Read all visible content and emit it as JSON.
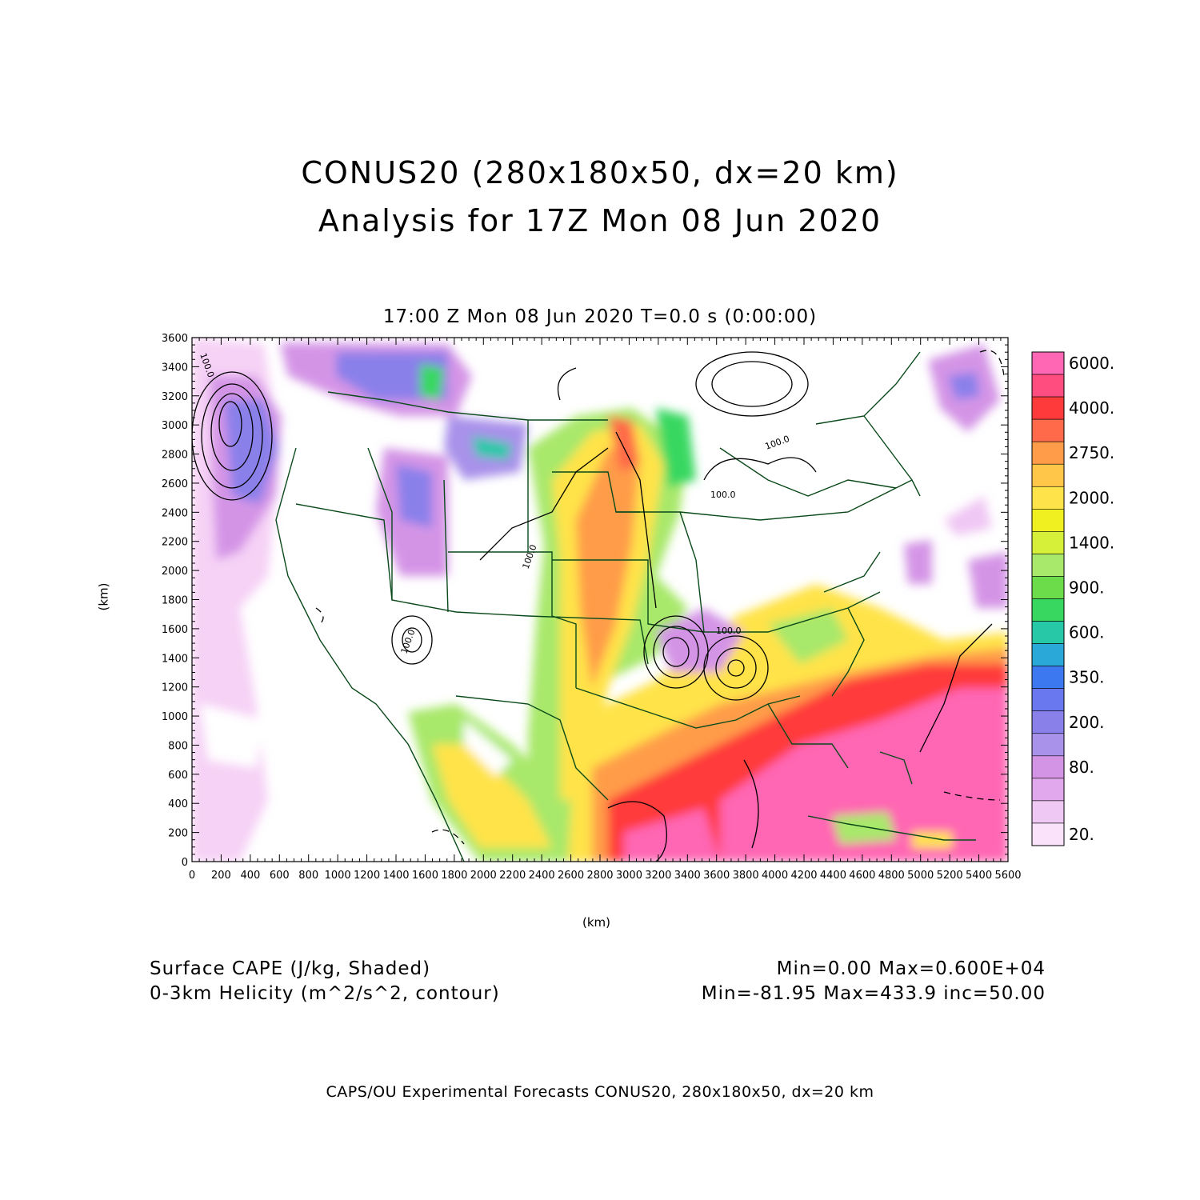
{
  "header": {
    "title_line1": "CONUS20 (280x180x50, dx=20 km)",
    "title_line2": "Analysis for 17Z Mon 08 Jun 2020",
    "subtitle": "17:00 Z Mon 08 Jun 2020    T=0.0 s (0:00:00)"
  },
  "chart_data": {
    "type": "heatmap",
    "xlabel": "(km)",
    "ylabel": "(km)",
    "xlim": [
      0,
      5600
    ],
    "ylim": [
      0,
      3600
    ],
    "x_ticks": [
      "0",
      "200",
      "400",
      "600",
      "800",
      "1000",
      "1200",
      "1400",
      "1600",
      "1800",
      "2000",
      "2200",
      "2400",
      "2600",
      "2800",
      "3000",
      "3200",
      "3400",
      "3600",
      "3800",
      "4000",
      "4200",
      "4400",
      "4600",
      "4800",
      "5000",
      "5200",
      "5400",
      "5600"
    ],
    "y_ticks": [
      "0",
      "200",
      "400",
      "600",
      "800",
      "1000",
      "1200",
      "1400",
      "1600",
      "1800",
      "2000",
      "2200",
      "2400",
      "2600",
      "2800",
      "3000",
      "3200",
      "3400",
      "3600"
    ],
    "shaded_field": "Surface CAPE (J/kg, Shaded)",
    "contour_field": "0-3km Helicity (m^2/s^2, contour)",
    "shaded_range": "Min=0.00 Max=0.600E+04",
    "contour_range": "Min=-81.95 Max=433.9 inc=50.00",
    "contour_labels": [
      "100.0",
      "100.0",
      "100.0",
      "100.0",
      "100.0",
      "100.0"
    ],
    "colorbar": {
      "labels": [
        "6000.",
        "4000.",
        "2750.",
        "2000.",
        "1400.",
        "900.",
        "600.",
        "350.",
        "200.",
        "80.",
        "20."
      ],
      "colors": [
        "#ff66b3",
        "#ff4d80",
        "#ff3a3a",
        "#ff6a4a",
        "#ff9c4a",
        "#ffc64a",
        "#ffe34a",
        "#f0f020",
        "#d6f03a",
        "#a8e86a",
        "#6cdc4a",
        "#38d860",
        "#26c8a8",
        "#2aa8d8",
        "#3c78f0",
        "#6a78f0",
        "#8a80ea",
        "#a892ea",
        "#d494e6",
        "#e2a8ee",
        "#f0c8f4",
        "#fbe2fb"
      ],
      "label_color_index": [
        0,
        2,
        4,
        6,
        8,
        10,
        12,
        14,
        16,
        18,
        21
      ]
    }
  },
  "footer": {
    "left_line1": "Surface CAPE (J/kg, Shaded)",
    "left_line2": "0-3km Helicity (m^2/s^2, contour)",
    "right_line1": "Min=0.00 Max=0.600E+04",
    "right_line2": "Min=-81.95 Max=433.9 inc=50.00",
    "credit": "CAPS/OU Experimental Forecasts  CONUS20, 280x180x50, dx=20 km"
  }
}
